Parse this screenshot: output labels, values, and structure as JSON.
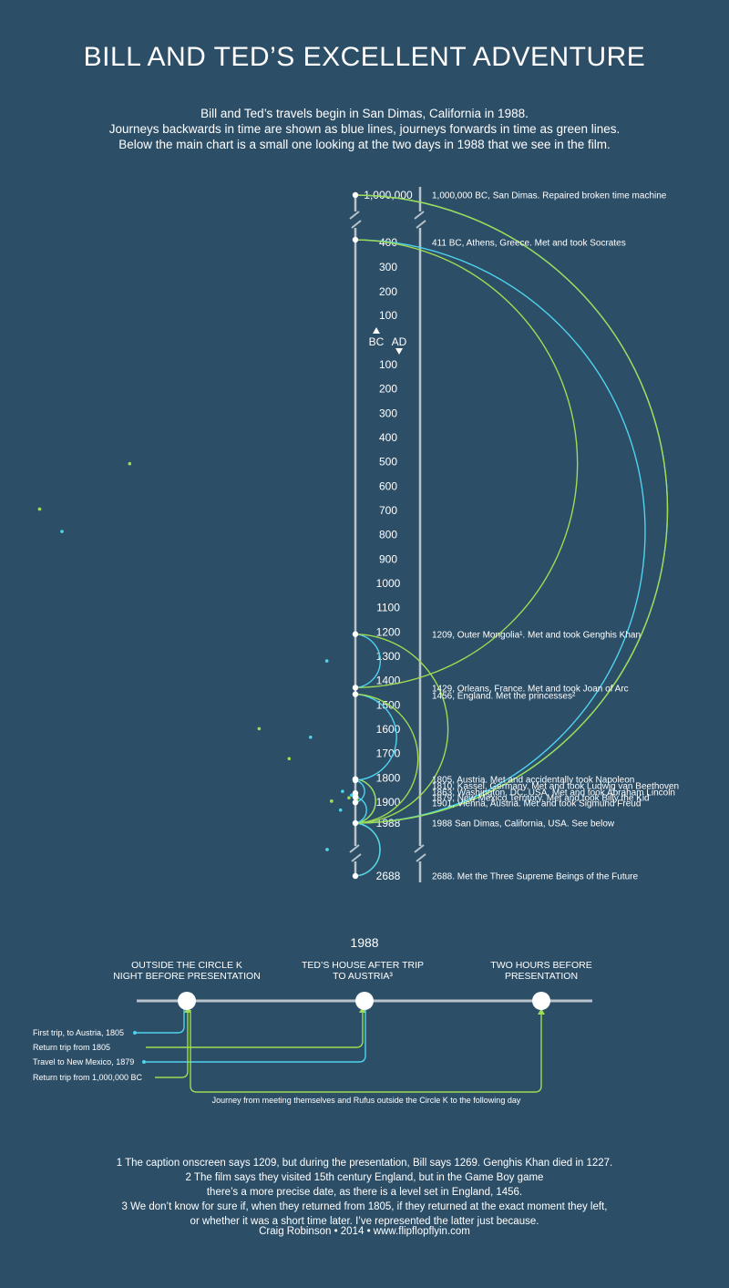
{
  "title": "BILL AND TED’S EXCELLENT ADVENTURE",
  "intro": [
    "Bill and Ted’s travels begin in San Dimas, California in 1988.",
    "Journeys backwards in time are shown as blue lines, journeys forwards in time as green lines.",
    "Below the main chart is a small one looking at the two days in 1988 that we see in the film."
  ],
  "colors": {
    "background": "#2c4e67",
    "backward": "#4fd3ef",
    "forward": "#9fdc52",
    "axis": "#b9c3cb"
  },
  "timeline": {
    "direction_labels": [
      "BC",
      "AD"
    ],
    "ticks": [
      {
        "label": "1,000,000",
        "year": -1000000
      },
      {
        "label": "400",
        "year": -400
      },
      {
        "label": "300",
        "year": -300
      },
      {
        "label": "200",
        "year": -200
      },
      {
        "label": "100",
        "year": -100
      },
      {
        "label": "100",
        "year": 100
      },
      {
        "label": "200",
        "year": 200
      },
      {
        "label": "300",
        "year": 300
      },
      {
        "label": "400",
        "year": 400
      },
      {
        "label": "500",
        "year": 500
      },
      {
        "label": "600",
        "year": 600
      },
      {
        "label": "700",
        "year": 700
      },
      {
        "label": "800",
        "year": 800
      },
      {
        "label": "900",
        "year": 900
      },
      {
        "label": "1000",
        "year": 1000
      },
      {
        "label": "1100",
        "year": 1100
      },
      {
        "label": "1200",
        "year": 1200
      },
      {
        "label": "1300",
        "year": 1300
      },
      {
        "label": "1400",
        "year": 1400
      },
      {
        "label": "1500",
        "year": 1500
      },
      {
        "label": "1600",
        "year": 1600
      },
      {
        "label": "1700",
        "year": 1700
      },
      {
        "label": "1800",
        "year": 1800
      },
      {
        "label": "1900",
        "year": 1900
      },
      {
        "label": "1988",
        "year": 1988
      },
      {
        "label": "2688",
        "year": 2688
      }
    ],
    "events": [
      {
        "year": -1000000,
        "text": "1,000,000 BC, San Dimas. Repaired broken time machine"
      },
      {
        "year": -411,
        "text": "411 BC, Athens, Greece. Met and took Socrates"
      },
      {
        "year": 1209,
        "text": "1209, Outer Mongolia¹. Met and took Genghis Khan"
      },
      {
        "year": 1429,
        "text": "1429, Orleans, France. Met and took Joan of Arc"
      },
      {
        "year": 1456,
        "text": "1456, England. Met the princesses²"
      },
      {
        "year": 1805,
        "text": "1805, Austria. Met and accidentally took Napoleon"
      },
      {
        "year": 1810,
        "text": "1810, Kassel, Germany. Met and took Ludwig van Beethoven"
      },
      {
        "year": 1863,
        "text": "1863, Washington, DC, USA. Met and took Abraham Lincoln"
      },
      {
        "year": 1879,
        "text": "1879, New Mexico Territory. Met and took Billy the Kid"
      },
      {
        "year": 1901,
        "text": "1901, Vienna, Austria. Met and took Sigmund Freud"
      },
      {
        "year": 1988,
        "text": "1988 San Dimas, California, USA. See below"
      },
      {
        "year": 2688,
        "text": "2688. Met the Three Supreme Beings of the Future"
      }
    ],
    "journeys": [
      {
        "from": 1988,
        "to": 1805,
        "direction": "backward"
      },
      {
        "from": 1805,
        "to": 1988,
        "direction": "forward"
      },
      {
        "from": 1988,
        "to": 1879,
        "direction": "backward"
      },
      {
        "from": 1879,
        "to": 1863,
        "direction": "backward"
      },
      {
        "from": 1863,
        "to": 1901,
        "direction": "forward"
      },
      {
        "from": 1901,
        "to": 1810,
        "direction": "backward"
      },
      {
        "from": 1810,
        "to": 1456,
        "direction": "backward"
      },
      {
        "from": 1456,
        "to": 1988,
        "direction": "forward"
      },
      {
        "from": 1988,
        "to": -411,
        "direction": "backward"
      },
      {
        "from": -411,
        "to": 1429,
        "direction": "forward"
      },
      {
        "from": 1429,
        "to": 1209,
        "direction": "backward"
      },
      {
        "from": 1209,
        "to": 1988,
        "direction": "forward"
      },
      {
        "from": 1988,
        "to": 2688,
        "direction": "forward"
      },
      {
        "from": 2688,
        "to": 1988,
        "direction": "backward"
      },
      {
        "from": 1988,
        "to": -1000000,
        "direction": "backward"
      },
      {
        "from": -1000000,
        "to": 1988,
        "direction": "forward"
      }
    ]
  },
  "mini": {
    "year": "1988",
    "points": [
      {
        "label": [
          "OUTSIDE THE CIRCLE K",
          "NIGHT BEFORE PRESENTATION"
        ]
      },
      {
        "label": [
          "TED’S HOUSE AFTER TRIP",
          "TO AUSTRIA³"
        ]
      },
      {
        "label": [
          "TWO HOURS BEFORE",
          "PRESENTATION"
        ]
      }
    ],
    "trips": [
      {
        "text": "First trip, to Austria, 1805",
        "direction": "backward"
      },
      {
        "text": "Return trip from 1805",
        "direction": "forward"
      },
      {
        "text": "Travel to New Mexico, 1879",
        "direction": "backward"
      },
      {
        "text": "Return trip from 1,000,000 BC",
        "direction": "forward"
      }
    ],
    "journey_note": "Journey from meeting themselves and Rufus outside the Circle K to the following day"
  },
  "footnotes": [
    "1 The caption onscreen says 1209, but during the presentation, Bill says 1269. Genghis Khan died in 1227.",
    "2 The film says they visited 15th century England, but in the Game Boy game",
    "there’s a more precise date, as there is a level set in England, 1456.",
    "3 We don’t know for sure if, when they returned from 1805, if they returned at the exact moment they left,",
    "or whether it was a short time later. I’ve represented the latter just because."
  ],
  "credit": "Craig Robinson • 2014 • www.flipflopflyin.com"
}
